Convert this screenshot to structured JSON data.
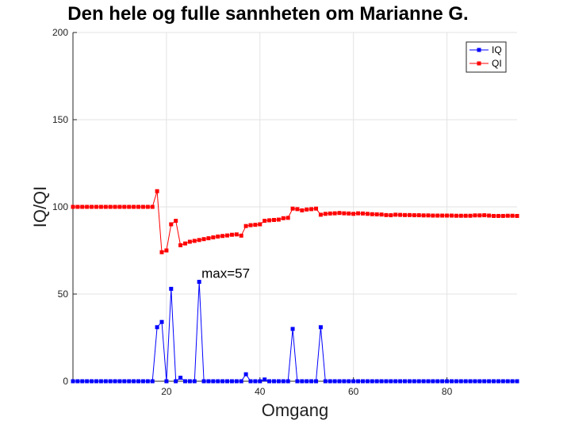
{
  "chart_data": {
    "type": "line",
    "title": "Den hele og fulle sannheten om Marianne G.",
    "xlabel": "Omgang",
    "ylabel": "IQ/QI",
    "xlim": [
      0,
      95
    ],
    "ylim": [
      0,
      200
    ],
    "xticks": [
      20,
      40,
      60,
      80
    ],
    "yticks": [
      0,
      50,
      100,
      150,
      200
    ],
    "grid": true,
    "legend_position": "top-right",
    "annotations": [
      {
        "text": "max=57",
        "x": 27.5,
        "y": 62
      }
    ],
    "series": [
      {
        "name": "IQ",
        "color": "#0000ff",
        "x": [
          0,
          1,
          2,
          3,
          4,
          5,
          6,
          7,
          8,
          9,
          10,
          11,
          12,
          13,
          14,
          15,
          16,
          17,
          18,
          19,
          20,
          21,
          22,
          23,
          24,
          25,
          26,
          27,
          28,
          29,
          30,
          31,
          32,
          33,
          34,
          35,
          36,
          37,
          38,
          39,
          40,
          41,
          42,
          43,
          44,
          45,
          46,
          47,
          48,
          49,
          50,
          51,
          52,
          53,
          54,
          55,
          56,
          57,
          58,
          59,
          60,
          61,
          62,
          63,
          64,
          65,
          66,
          67,
          68,
          69,
          70,
          71,
          72,
          73,
          74,
          75,
          76,
          77,
          78,
          79,
          80,
          81,
          82,
          83,
          84,
          85,
          86,
          87,
          88,
          89,
          90,
          91,
          92,
          93,
          94,
          95
        ],
        "y": [
          0,
          0,
          0,
          0,
          0,
          0,
          0,
          0,
          0,
          0,
          0,
          0,
          0,
          0,
          0,
          0,
          0,
          0,
          31,
          34,
          0,
          53,
          0,
          2,
          0,
          0,
          0,
          57,
          0,
          0,
          0,
          0,
          0,
          0,
          0,
          0,
          0,
          4,
          0,
          0,
          0,
          1,
          0,
          0,
          0,
          0,
          0,
          30,
          0,
          0,
          0,
          0,
          0,
          31,
          0,
          0,
          0,
          0,
          0,
          0,
          0,
          0,
          0,
          0,
          0,
          0,
          0,
          0,
          0,
          0,
          0,
          0,
          0,
          0,
          0,
          0,
          0,
          0,
          0,
          0,
          0,
          0,
          0,
          0,
          0,
          0,
          0,
          0,
          0,
          0,
          0,
          0,
          0,
          0,
          0,
          0
        ]
      },
      {
        "name": "QI",
        "color": "#ff0000",
        "x": [
          0,
          1,
          2,
          3,
          4,
          5,
          6,
          7,
          8,
          9,
          10,
          11,
          12,
          13,
          14,
          15,
          16,
          17,
          18,
          19,
          20,
          21,
          22,
          23,
          24,
          25,
          26,
          27,
          28,
          29,
          30,
          31,
          32,
          33,
          34,
          35,
          36,
          37,
          38,
          39,
          40,
          41,
          42,
          43,
          44,
          45,
          46,
          47,
          48,
          49,
          50,
          51,
          52,
          53,
          54,
          55,
          56,
          57,
          58,
          59,
          60,
          61,
          62,
          63,
          64,
          65,
          66,
          67,
          68,
          69,
          70,
          71,
          72,
          73,
          74,
          75,
          76,
          77,
          78,
          79,
          80,
          81,
          82,
          83,
          84,
          85,
          86,
          87,
          88,
          89,
          90,
          91,
          92,
          93,
          94,
          95
        ],
        "y": [
          100,
          100,
          100,
          100,
          100,
          100,
          100,
          100,
          100,
          100,
          100,
          100,
          100,
          100,
          100,
          100,
          100,
          100,
          109,
          74,
          75,
          90,
          92,
          78,
          79,
          80,
          80.5,
          81,
          81.5,
          82,
          82.5,
          83,
          83.3,
          83.6,
          84,
          84.2,
          83.5,
          89,
          89.5,
          89.7,
          90,
          92,
          92.3,
          92.5,
          92.7,
          93.5,
          93.7,
          99,
          98.7,
          98,
          98.5,
          98.7,
          99,
          95.5,
          96,
          96.2,
          96.3,
          96.5,
          96.3,
          96.2,
          96,
          96.3,
          96.2,
          96,
          95.8,
          95.7,
          95.6,
          95.3,
          95.2,
          95.5,
          95.4,
          95.3,
          95.3,
          95.2,
          95.2,
          95.1,
          95.1,
          95,
          95,
          95,
          95,
          95,
          94.9,
          94.9,
          94.9,
          94.9,
          95.1,
          95.1,
          95.2,
          95,
          94.8,
          94.8,
          94.8,
          94.9,
          94.9,
          94.8
        ]
      }
    ]
  }
}
